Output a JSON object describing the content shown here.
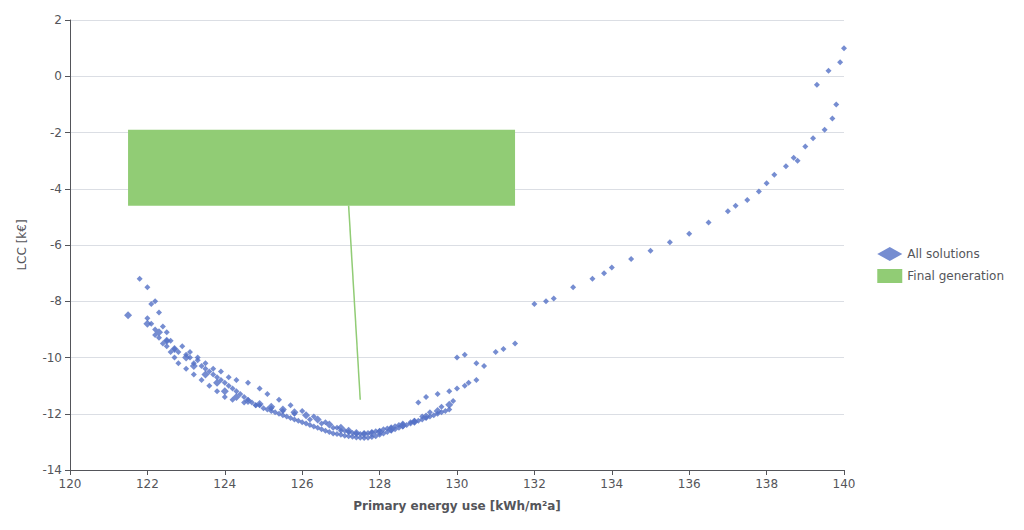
{
  "chart_data": {
    "type": "scatter",
    "xlabel": "Primary energy use [kWh/m²a]",
    "ylabel": "LCC [k€]",
    "xlim": [
      120,
      140
    ],
    "ylim": [
      -14,
      2
    ],
    "xticks": [
      120,
      122,
      124,
      126,
      128,
      130,
      132,
      134,
      136,
      138,
      140
    ],
    "yticks": [
      -14,
      -12,
      -10,
      -8,
      -6,
      -4,
      -2,
      0,
      2
    ],
    "grid": true,
    "legend": "right",
    "series": [
      {
        "name": "All solutions",
        "color": "#5470c6",
        "marker": "diamond",
        "values": [
          [
            121.8,
            -7.2
          ],
          [
            122.0,
            -7.5
          ],
          [
            122.1,
            -8.1
          ],
          [
            122.2,
            -8.0
          ],
          [
            122.3,
            -8.4
          ],
          [
            122.0,
            -8.6
          ],
          [
            122.1,
            -8.8
          ],
          [
            122.2,
            -9.0
          ],
          [
            122.4,
            -8.9
          ],
          [
            122.5,
            -9.1
          ],
          [
            122.3,
            -9.3
          ],
          [
            122.4,
            -9.5
          ],
          [
            122.5,
            -9.6
          ],
          [
            122.6,
            -9.4
          ],
          [
            122.7,
            -9.7
          ],
          [
            122.8,
            -9.8
          ],
          [
            123.0,
            -9.9
          ],
          [
            123.1,
            -10.0
          ],
          [
            123.2,
            -10.2
          ],
          [
            123.3,
            -10.1
          ],
          [
            123.4,
            -10.3
          ],
          [
            123.5,
            -10.4
          ],
          [
            123.6,
            -10.5
          ],
          [
            123.7,
            -10.6
          ],
          [
            123.8,
            -10.7
          ],
          [
            123.9,
            -10.8
          ],
          [
            124.0,
            -10.9
          ],
          [
            124.1,
            -11.0
          ],
          [
            124.2,
            -11.1
          ],
          [
            124.3,
            -11.2
          ],
          [
            124.4,
            -11.3
          ],
          [
            124.5,
            -11.4
          ],
          [
            124.6,
            -11.5
          ],
          [
            124.7,
            -11.6
          ],
          [
            124.8,
            -11.7
          ],
          [
            124.9,
            -11.7
          ],
          [
            125.0,
            -11.8
          ],
          [
            125.1,
            -11.85
          ],
          [
            125.2,
            -11.9
          ],
          [
            125.3,
            -11.95
          ],
          [
            125.4,
            -12.0
          ],
          [
            125.5,
            -12.05
          ],
          [
            125.6,
            -12.1
          ],
          [
            125.7,
            -12.15
          ],
          [
            125.8,
            -12.2
          ],
          [
            125.9,
            -12.25
          ],
          [
            126.0,
            -12.3
          ],
          [
            126.1,
            -12.35
          ],
          [
            126.2,
            -12.4
          ],
          [
            126.3,
            -12.45
          ],
          [
            126.4,
            -12.5
          ],
          [
            126.5,
            -12.55
          ],
          [
            126.6,
            -12.6
          ],
          [
            126.7,
            -12.65
          ],
          [
            126.8,
            -12.7
          ],
          [
            126.9,
            -12.72
          ],
          [
            127.0,
            -12.75
          ],
          [
            127.1,
            -12.78
          ],
          [
            127.2,
            -12.8
          ],
          [
            127.3,
            -12.82
          ],
          [
            127.4,
            -12.84
          ],
          [
            127.5,
            -12.85
          ],
          [
            127.6,
            -12.86
          ],
          [
            127.7,
            -12.85
          ],
          [
            127.8,
            -12.83
          ],
          [
            127.9,
            -12.8
          ],
          [
            128.0,
            -12.75
          ],
          [
            128.1,
            -12.7
          ],
          [
            128.2,
            -12.65
          ],
          [
            128.3,
            -12.6
          ],
          [
            128.4,
            -12.55
          ],
          [
            128.5,
            -12.5
          ],
          [
            128.6,
            -12.45
          ],
          [
            128.7,
            -12.4
          ],
          [
            128.8,
            -12.35
          ],
          [
            128.9,
            -12.3
          ],
          [
            129.0,
            -12.25
          ],
          [
            129.1,
            -12.2
          ],
          [
            129.2,
            -12.15
          ],
          [
            129.3,
            -12.1
          ],
          [
            129.4,
            -12.05
          ],
          [
            129.5,
            -12.0
          ],
          [
            129.6,
            -11.95
          ],
          [
            129.7,
            -11.9
          ],
          [
            129.8,
            -11.85
          ],
          [
            122.2,
            -9.2
          ],
          [
            122.5,
            -9.4
          ],
          [
            122.7,
            -10.0
          ],
          [
            122.8,
            -10.2
          ],
          [
            123.0,
            -10.4
          ],
          [
            123.2,
            -10.6
          ],
          [
            123.4,
            -10.8
          ],
          [
            123.6,
            -11.0
          ],
          [
            123.8,
            -11.2
          ],
          [
            124.0,
            -11.4
          ],
          [
            124.2,
            -11.5
          ],
          [
            124.5,
            -11.6
          ],
          [
            124.8,
            -11.7
          ],
          [
            125.2,
            -11.8
          ],
          [
            125.5,
            -11.9
          ],
          [
            125.8,
            -12.0
          ],
          [
            126.2,
            -12.2
          ],
          [
            126.5,
            -12.35
          ],
          [
            126.8,
            -12.5
          ],
          [
            127.0,
            -12.6
          ],
          [
            127.2,
            -12.65
          ],
          [
            127.4,
            -12.7
          ],
          [
            127.5,
            -12.72
          ],
          [
            127.7,
            -12.68
          ],
          [
            127.9,
            -12.62
          ],
          [
            128.1,
            -12.55
          ],
          [
            128.3,
            -12.48
          ],
          [
            128.5,
            -12.4
          ],
          [
            128.8,
            -12.3
          ],
          [
            129.0,
            -11.6
          ],
          [
            129.2,
            -11.4
          ],
          [
            129.5,
            -11.3
          ],
          [
            129.8,
            -11.2
          ],
          [
            130.0,
            -11.1
          ],
          [
            130.2,
            -11.0
          ],
          [
            130.3,
            -10.9
          ],
          [
            130.5,
            -10.8
          ],
          [
            130.0,
            -10.0
          ],
          [
            130.2,
            -9.9
          ],
          [
            130.5,
            -10.2
          ],
          [
            130.7,
            -10.3
          ],
          [
            131.0,
            -9.8
          ],
          [
            131.2,
            -9.7
          ],
          [
            131.5,
            -9.5
          ],
          [
            132.0,
            -8.1
          ],
          [
            132.3,
            -8.0
          ],
          [
            132.5,
            -7.9
          ],
          [
            133.0,
            -7.5
          ],
          [
            133.5,
            -7.2
          ],
          [
            133.8,
            -7.0
          ],
          [
            134.0,
            -6.8
          ],
          [
            134.5,
            -6.5
          ],
          [
            135.0,
            -6.2
          ],
          [
            135.5,
            -5.9
          ],
          [
            136.0,
            -5.6
          ],
          [
            136.5,
            -5.2
          ],
          [
            137.0,
            -4.8
          ],
          [
            137.2,
            -4.6
          ],
          [
            137.5,
            -4.4
          ],
          [
            137.8,
            -4.1
          ],
          [
            138.0,
            -3.8
          ],
          [
            138.2,
            -3.5
          ],
          [
            138.5,
            -3.2
          ],
          [
            138.7,
            -2.9
          ],
          [
            139.0,
            -2.5
          ],
          [
            139.2,
            -2.2
          ],
          [
            139.5,
            -1.9
          ],
          [
            139.7,
            -1.5
          ],
          [
            139.8,
            -1.0
          ],
          [
            139.9,
            0.5
          ],
          [
            140.0,
            1.0
          ],
          [
            138.8,
            -3.0
          ],
          [
            139.3,
            -0.3
          ],
          [
            139.6,
            0.2
          ],
          [
            122.6,
            -9.8
          ],
          [
            122.9,
            -9.6
          ],
          [
            123.1,
            -9.8
          ],
          [
            123.3,
            -10.0
          ],
          [
            123.5,
            -10.2
          ],
          [
            123.7,
            -10.4
          ],
          [
            123.9,
            -10.5
          ],
          [
            124.1,
            -10.7
          ],
          [
            124.3,
            -10.8
          ],
          [
            124.6,
            -10.9
          ],
          [
            124.9,
            -11.1
          ],
          [
            125.1,
            -11.3
          ],
          [
            125.4,
            -11.5
          ],
          [
            125.7,
            -11.7
          ],
          [
            126.0,
            -11.9
          ],
          [
            126.3,
            -12.1
          ],
          [
            126.6,
            -12.3
          ],
          [
            126.9,
            -12.5
          ],
          [
            127.1,
            -12.6
          ],
          [
            127.3,
            -12.68
          ],
          [
            127.6,
            -12.7
          ],
          [
            127.8,
            -12.65
          ],
          [
            128.0,
            -12.6
          ],
          [
            128.2,
            -12.52
          ],
          [
            128.4,
            -12.44
          ],
          [
            128.6,
            -12.35
          ],
          [
            128.9,
            -12.25
          ],
          [
            129.1,
            -12.1
          ],
          [
            129.3,
            -11.95
          ],
          [
            129.6,
            -11.75
          ],
          [
            129.9,
            -11.55
          ]
        ]
      },
      {
        "color": "#5470c6",
        "marker": "diamond",
        "values": [
          [
            121.5,
            -8.5
          ],
          [
            122.0,
            -8.8
          ],
          [
            122.3,
            -9.1
          ],
          [
            122.5,
            -9.4
          ],
          [
            122.7,
            -9.7
          ],
          [
            123.0,
            -10.0
          ],
          [
            123.2,
            -10.3
          ],
          [
            123.5,
            -10.6
          ],
          [
            123.8,
            -10.9
          ],
          [
            124.0,
            -11.2
          ],
          [
            124.3,
            -11.4
          ],
          [
            124.6,
            -11.55
          ],
          [
            124.9,
            -11.65
          ],
          [
            125.2,
            -11.75
          ],
          [
            125.5,
            -11.85
          ],
          [
            125.8,
            -11.95
          ],
          [
            126.1,
            -12.05
          ],
          [
            126.4,
            -12.2
          ],
          [
            126.7,
            -12.38
          ],
          [
            127.0,
            -12.5
          ],
          [
            127.2,
            -12.6
          ],
          [
            127.4,
            -12.68
          ],
          [
            127.6,
            -12.72
          ],
          [
            127.8,
            -12.7
          ],
          [
            128.0,
            -12.65
          ],
          [
            128.3,
            -12.55
          ],
          [
            128.6,
            -12.42
          ],
          [
            128.9,
            -12.28
          ],
          [
            129.2,
            -12.1
          ],
          [
            129.5,
            -11.9
          ],
          [
            129.8,
            -11.68
          ]
        ]
      }
    ],
    "box": {
      "name": "Final generation",
      "color": "#91cc75",
      "x": 121.5,
      "y": -4.6,
      "width": 10.0,
      "height": 2.7
    },
    "line": {
      "color": "#91cc75",
      "x": [
        127.2,
        127.5
      ],
      "y": [
        -4.6,
        -11.5
      ]
    }
  }
}
